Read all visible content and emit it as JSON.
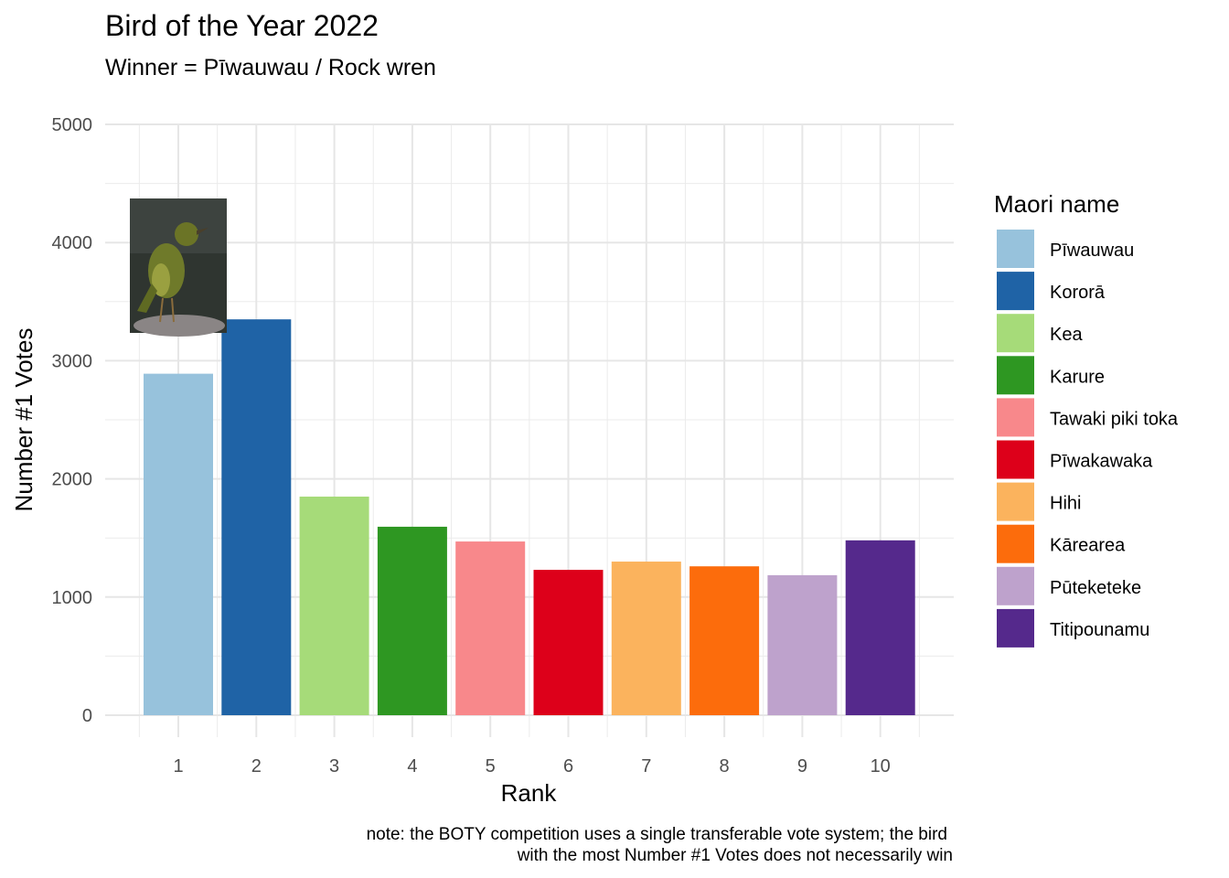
{
  "chart_data": {
    "type": "bar",
    "title": "Bird of the Year 2022",
    "subtitle": "Winner = Pīwauwau / Rock wren",
    "xlabel": "Rank",
    "ylabel": "Number #1 Votes",
    "caption_lines": [
      "note: the BOTY competition uses a single transferable vote system; the bird",
      "with the most Number #1 Votes does not necessarily win"
    ],
    "categories": [
      "1",
      "2",
      "3",
      "4",
      "5",
      "6",
      "7",
      "8",
      "9",
      "10"
    ],
    "values": [
      2890,
      3350,
      1850,
      1595,
      1470,
      1230,
      1300,
      1260,
      1185,
      1480
    ],
    "names": [
      "Pīwauwau",
      "Kororā",
      "Kea",
      "Karure",
      "Tawaki piki toka",
      "Pīwakawaka",
      "Hihi",
      "Kārearea",
      "Pūteketeke",
      "Titipounamu"
    ],
    "colors": [
      "#97C2DC",
      "#1F63A6",
      "#A6DB79",
      "#2E9722",
      "#F8888B",
      "#DD001A",
      "#FBB35D",
      "#FC6C0C",
      "#BEA2CC",
      "#55298C"
    ],
    "ylim": [
      0,
      5000
    ],
    "yticks": [
      0,
      1000,
      2000,
      3000,
      4000,
      5000
    ],
    "grid": true,
    "legend_title": "Maori name",
    "legend_position": "right",
    "image_annotation": "rock-wren-photo"
  }
}
